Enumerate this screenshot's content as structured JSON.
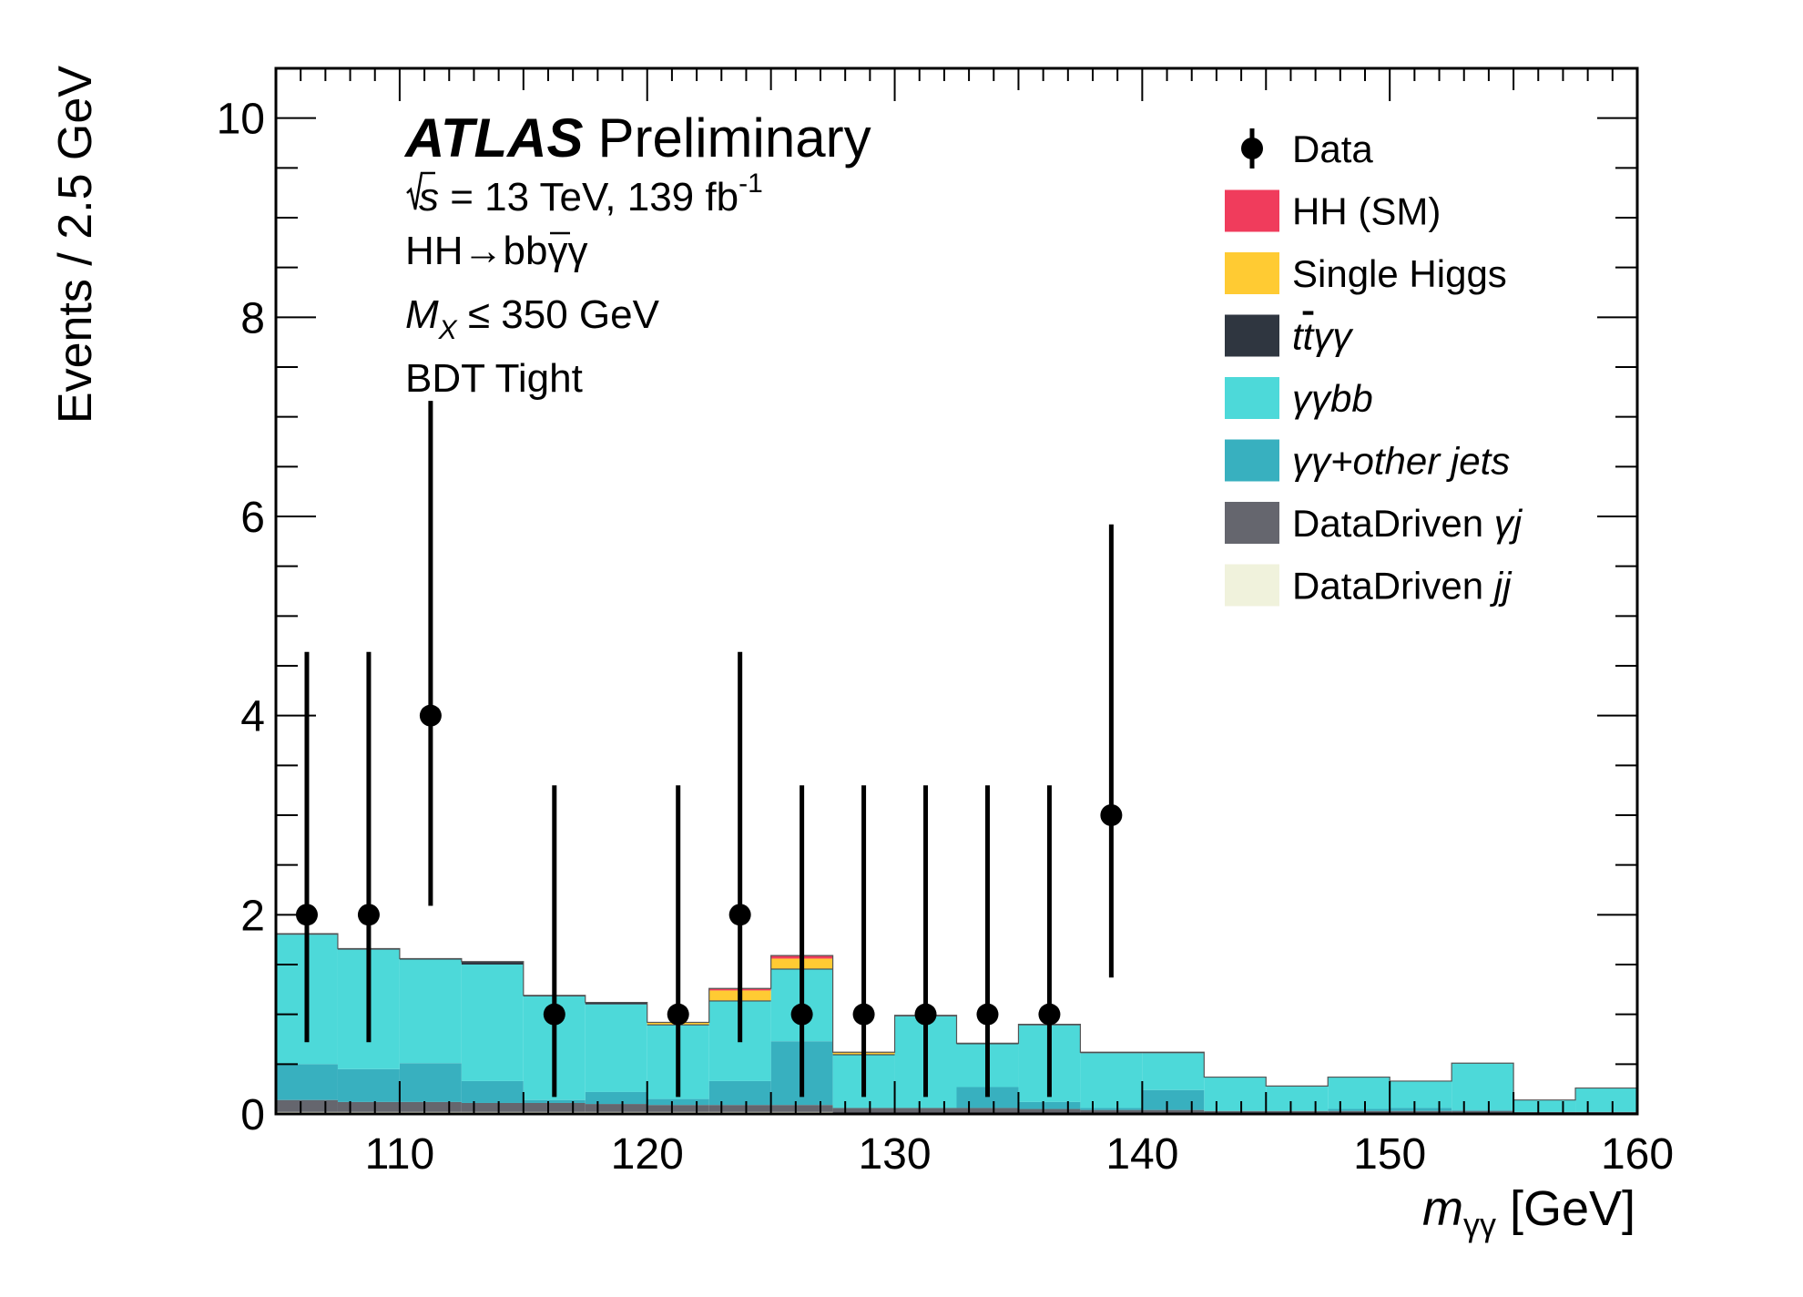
{
  "chart_data": {
    "type": "bar",
    "subtype": "stacked-histogram-with-data-points",
    "experiment_label": "ATLAS",
    "status_label": "Preliminary",
    "info_lines": {
      "sqrt_s": "s",
      "energy_lumi": " = 13 TeV, 139 fb",
      "lumi_exp": "-1",
      "channel": "HH→bbγγ",
      "mass_symbol": "M",
      "mass_sub": "X",
      "mass_cut": " ≤ 350 GeV",
      "category": "BDT Tight"
    },
    "xlabel_symbol": "m",
    "xlabel_sub": "γγ",
    "xlabel_unit": " [GeV]",
    "ylabel": "Events / 2.5 GeV",
    "xlim": [
      105,
      160
    ],
    "ylim": [
      0,
      10.5
    ],
    "x_ticks": [
      110,
      120,
      130,
      140,
      150,
      160
    ],
    "y_ticks": [
      0,
      2,
      4,
      6,
      8,
      10
    ],
    "bin_edges": [
      105,
      107.5,
      110,
      112.5,
      115,
      117.5,
      120,
      122.5,
      125,
      127.5,
      130,
      132.5,
      135,
      137.5,
      140,
      142.5,
      145,
      147.5,
      150,
      152.5,
      155,
      157.5,
      160
    ],
    "series": [
      {
        "name": "DataDriven jj",
        "color": "#f0f2dc",
        "values": [
          0.02,
          0.02,
          0.02,
          0.02,
          0.02,
          0.02,
          0.02,
          0.02,
          0.02,
          0.01,
          0.01,
          0.01,
          0.01,
          0.01,
          0.01,
          0.01,
          0.01,
          0.01,
          0.01,
          0.01,
          0.01,
          0.01
        ]
      },
      {
        "name": "DataDriven γj",
        "color": "#65666e",
        "values": [
          0.12,
          0.1,
          0.1,
          0.09,
          0.09,
          0.08,
          0.07,
          0.07,
          0.07,
          0.05,
          0.05,
          0.05,
          0.04,
          0.03,
          0.03,
          0.02,
          0.02,
          0.02,
          0.02,
          0.02,
          0.01,
          0.01
        ]
      },
      {
        "name": "γγ+other jets",
        "color": "#38b0bf",
        "values": [
          0.36,
          0.33,
          0.39,
          0.22,
          0.03,
          0.12,
          0.06,
          0.24,
          0.64,
          0.0,
          0.0,
          0.21,
          0.07,
          0.02,
          0.2,
          0.0,
          0.0,
          0.02,
          0.03,
          0.01,
          0.0,
          0.0
        ]
      },
      {
        "name": "γγbb",
        "color": "#4dd9d9",
        "values": [
          1.3,
          1.2,
          1.04,
          1.17,
          1.04,
          0.88,
          0.74,
          0.8,
          0.72,
          0.53,
          0.92,
          0.43,
          0.77,
          0.55,
          0.37,
          0.34,
          0.25,
          0.32,
          0.27,
          0.47,
          0.12,
          0.24
        ]
      },
      {
        "name": "ttγγ",
        "color": "#2f3640",
        "values": [
          0.01,
          0.01,
          0.01,
          0.03,
          0.01,
          0.02,
          0.01,
          0.01,
          0.01,
          0.01,
          0.01,
          0.01,
          0.01,
          0.01,
          0.01,
          0.0,
          0.0,
          0.0,
          0.0,
          0.0,
          0.0,
          0.0
        ]
      },
      {
        "name": "Single Higgs",
        "color": "#ffcb33",
        "values": [
          0.0,
          0.0,
          0.0,
          0.0,
          0.0,
          0.0,
          0.02,
          0.1,
          0.1,
          0.02,
          0.0,
          0.0,
          0.0,
          0.0,
          0.0,
          0.0,
          0.0,
          0.0,
          0.0,
          0.0,
          0.0,
          0.0
        ]
      },
      {
        "name": "HH (SM)",
        "color": "#f03c5c",
        "values": [
          0.0,
          0.0,
          0.0,
          0.0,
          0.0,
          0.0,
          0.0,
          0.02,
          0.03,
          0.0,
          0.0,
          0.0,
          0.0,
          0.0,
          0.0,
          0.0,
          0.0,
          0.0,
          0.0,
          0.0,
          0.0,
          0.0
        ]
      }
    ],
    "data_points": [
      {
        "x": 106.25,
        "y": 2,
        "err_low": 1.28,
        "err_high": 2.64
      },
      {
        "x": 108.75,
        "y": 2,
        "err_low": 1.28,
        "err_high": 2.64
      },
      {
        "x": 111.25,
        "y": 4,
        "err_low": 1.91,
        "err_high": 3.16
      },
      {
        "x": 116.25,
        "y": 1,
        "err_low": 0.83,
        "err_high": 2.3
      },
      {
        "x": 121.25,
        "y": 1,
        "err_low": 0.83,
        "err_high": 2.3
      },
      {
        "x": 123.75,
        "y": 2,
        "err_low": 1.28,
        "err_high": 2.64
      },
      {
        "x": 126.25,
        "y": 1,
        "err_low": 0.83,
        "err_high": 2.3
      },
      {
        "x": 128.75,
        "y": 1,
        "err_low": 0.83,
        "err_high": 2.3
      },
      {
        "x": 131.25,
        "y": 1,
        "err_low": 0.83,
        "err_high": 2.3
      },
      {
        "x": 133.75,
        "y": 1,
        "err_low": 0.83,
        "err_high": 2.3
      },
      {
        "x": 136.25,
        "y": 1,
        "err_low": 0.83,
        "err_high": 2.3
      },
      {
        "x": 138.75,
        "y": 3,
        "err_low": 1.63,
        "err_high": 2.92
      }
    ],
    "legend": {
      "placement": "top-right",
      "entries": [
        {
          "label": "Data",
          "kind": "data",
          "color": "#000000"
        },
        {
          "label": "HH (SM)",
          "kind": "box",
          "color": "#f03c5c"
        },
        {
          "label": "Single Higgs",
          "kind": "box",
          "color": "#ffcb33"
        },
        {
          "label": "ttγγ",
          "kind": "box",
          "color": "#2f3640"
        },
        {
          "label": "γγbb",
          "kind": "box",
          "color": "#4dd9d9"
        },
        {
          "label": "γγ+other jets",
          "kind": "box",
          "color": "#38b0bf"
        },
        {
          "label": "DataDriven γj",
          "kind": "box",
          "color": "#65666e"
        },
        {
          "label": "DataDriven jj",
          "kind": "box",
          "color": "#f0f2dc"
        }
      ]
    },
    "grid": false
  }
}
